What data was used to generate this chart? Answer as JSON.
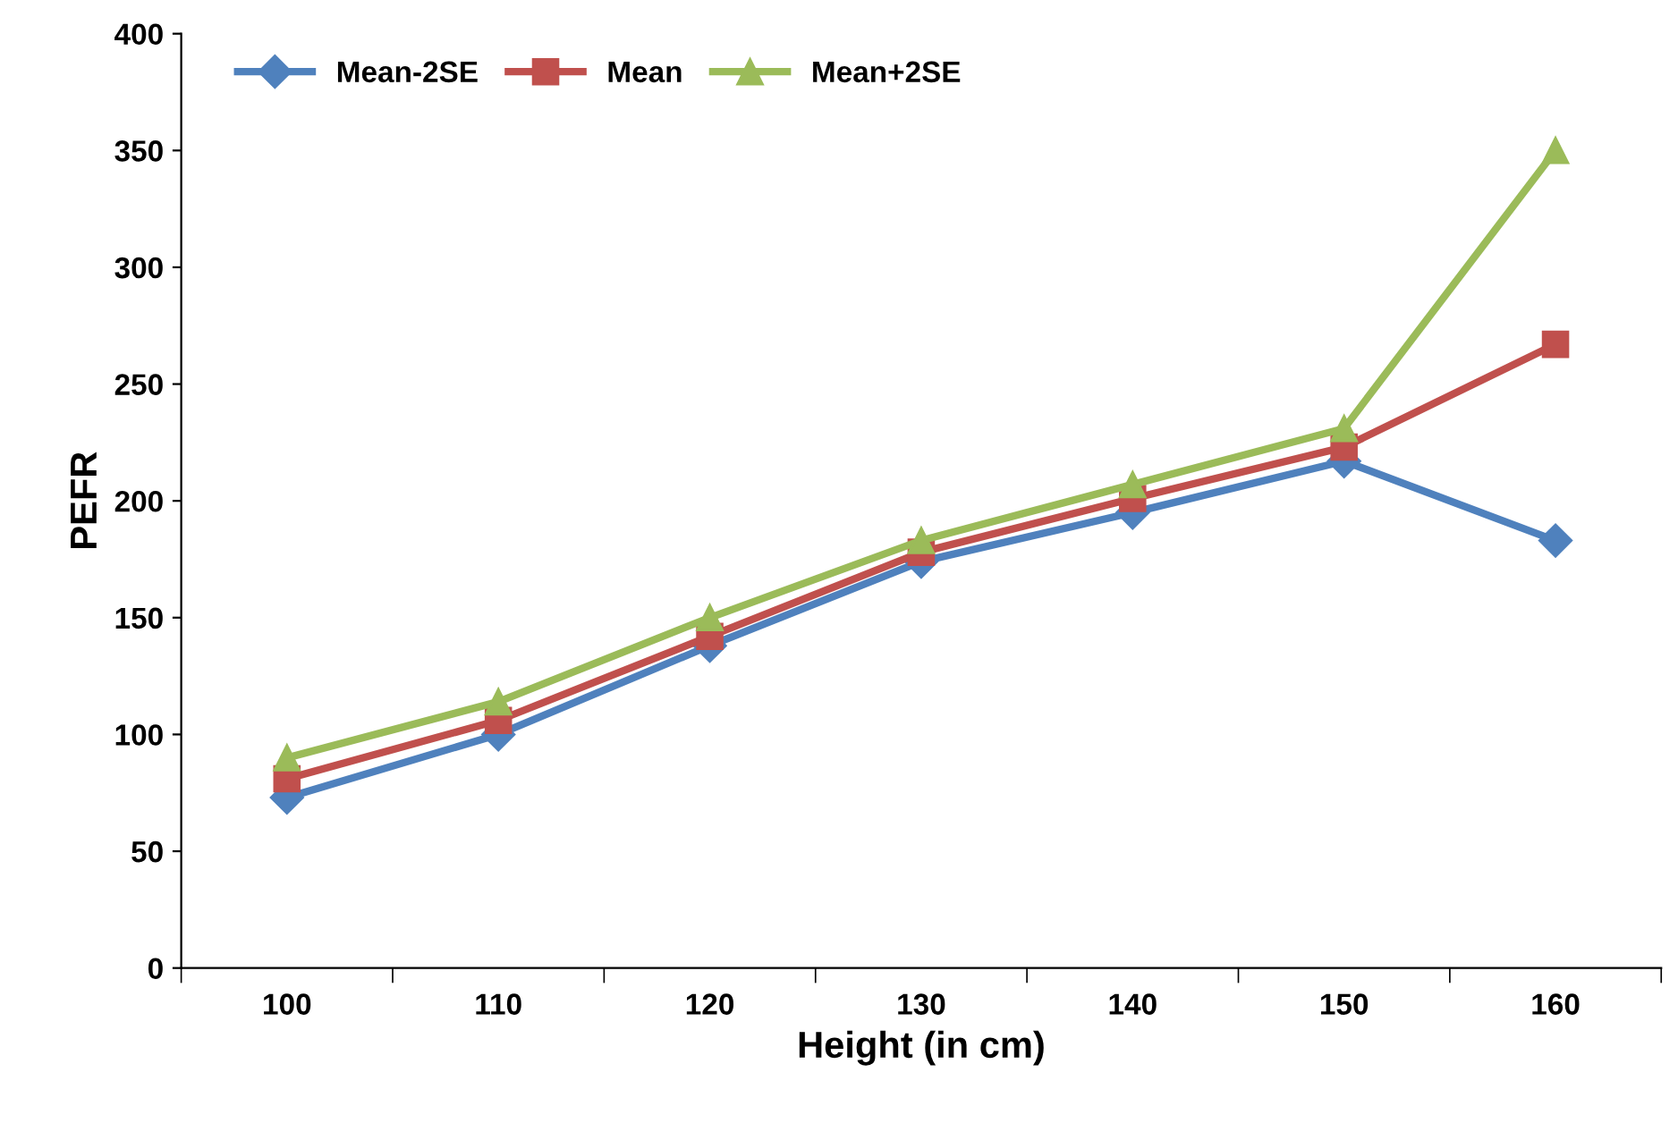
{
  "chart_data": {
    "type": "line",
    "xlabel": "Height (in cm)",
    "ylabel": "PEFR",
    "categories": [
      "100",
      "110",
      "120",
      "130",
      "140",
      "150",
      "160"
    ],
    "series": [
      {
        "name": "Mean-2SE",
        "color": "#4f81bd",
        "marker": "diamond",
        "values": [
          73,
          100,
          138,
          174,
          195,
          217,
          183
        ]
      },
      {
        "name": "Mean",
        "color": "#c0504d",
        "marker": "square",
        "values": [
          81,
          106,
          142,
          178,
          201,
          223,
          267
        ]
      },
      {
        "name": "Mean+2SE",
        "color": "#9bbb59",
        "marker": "triangle",
        "values": [
          90,
          114,
          150,
          183,
          207,
          231,
          350
        ]
      }
    ],
    "ylim": [
      0,
      400
    ],
    "yticks": [
      0,
      50,
      100,
      150,
      200,
      250,
      300,
      350,
      400
    ],
    "grid": false,
    "legend": "top left",
    "line_style": "solid"
  }
}
